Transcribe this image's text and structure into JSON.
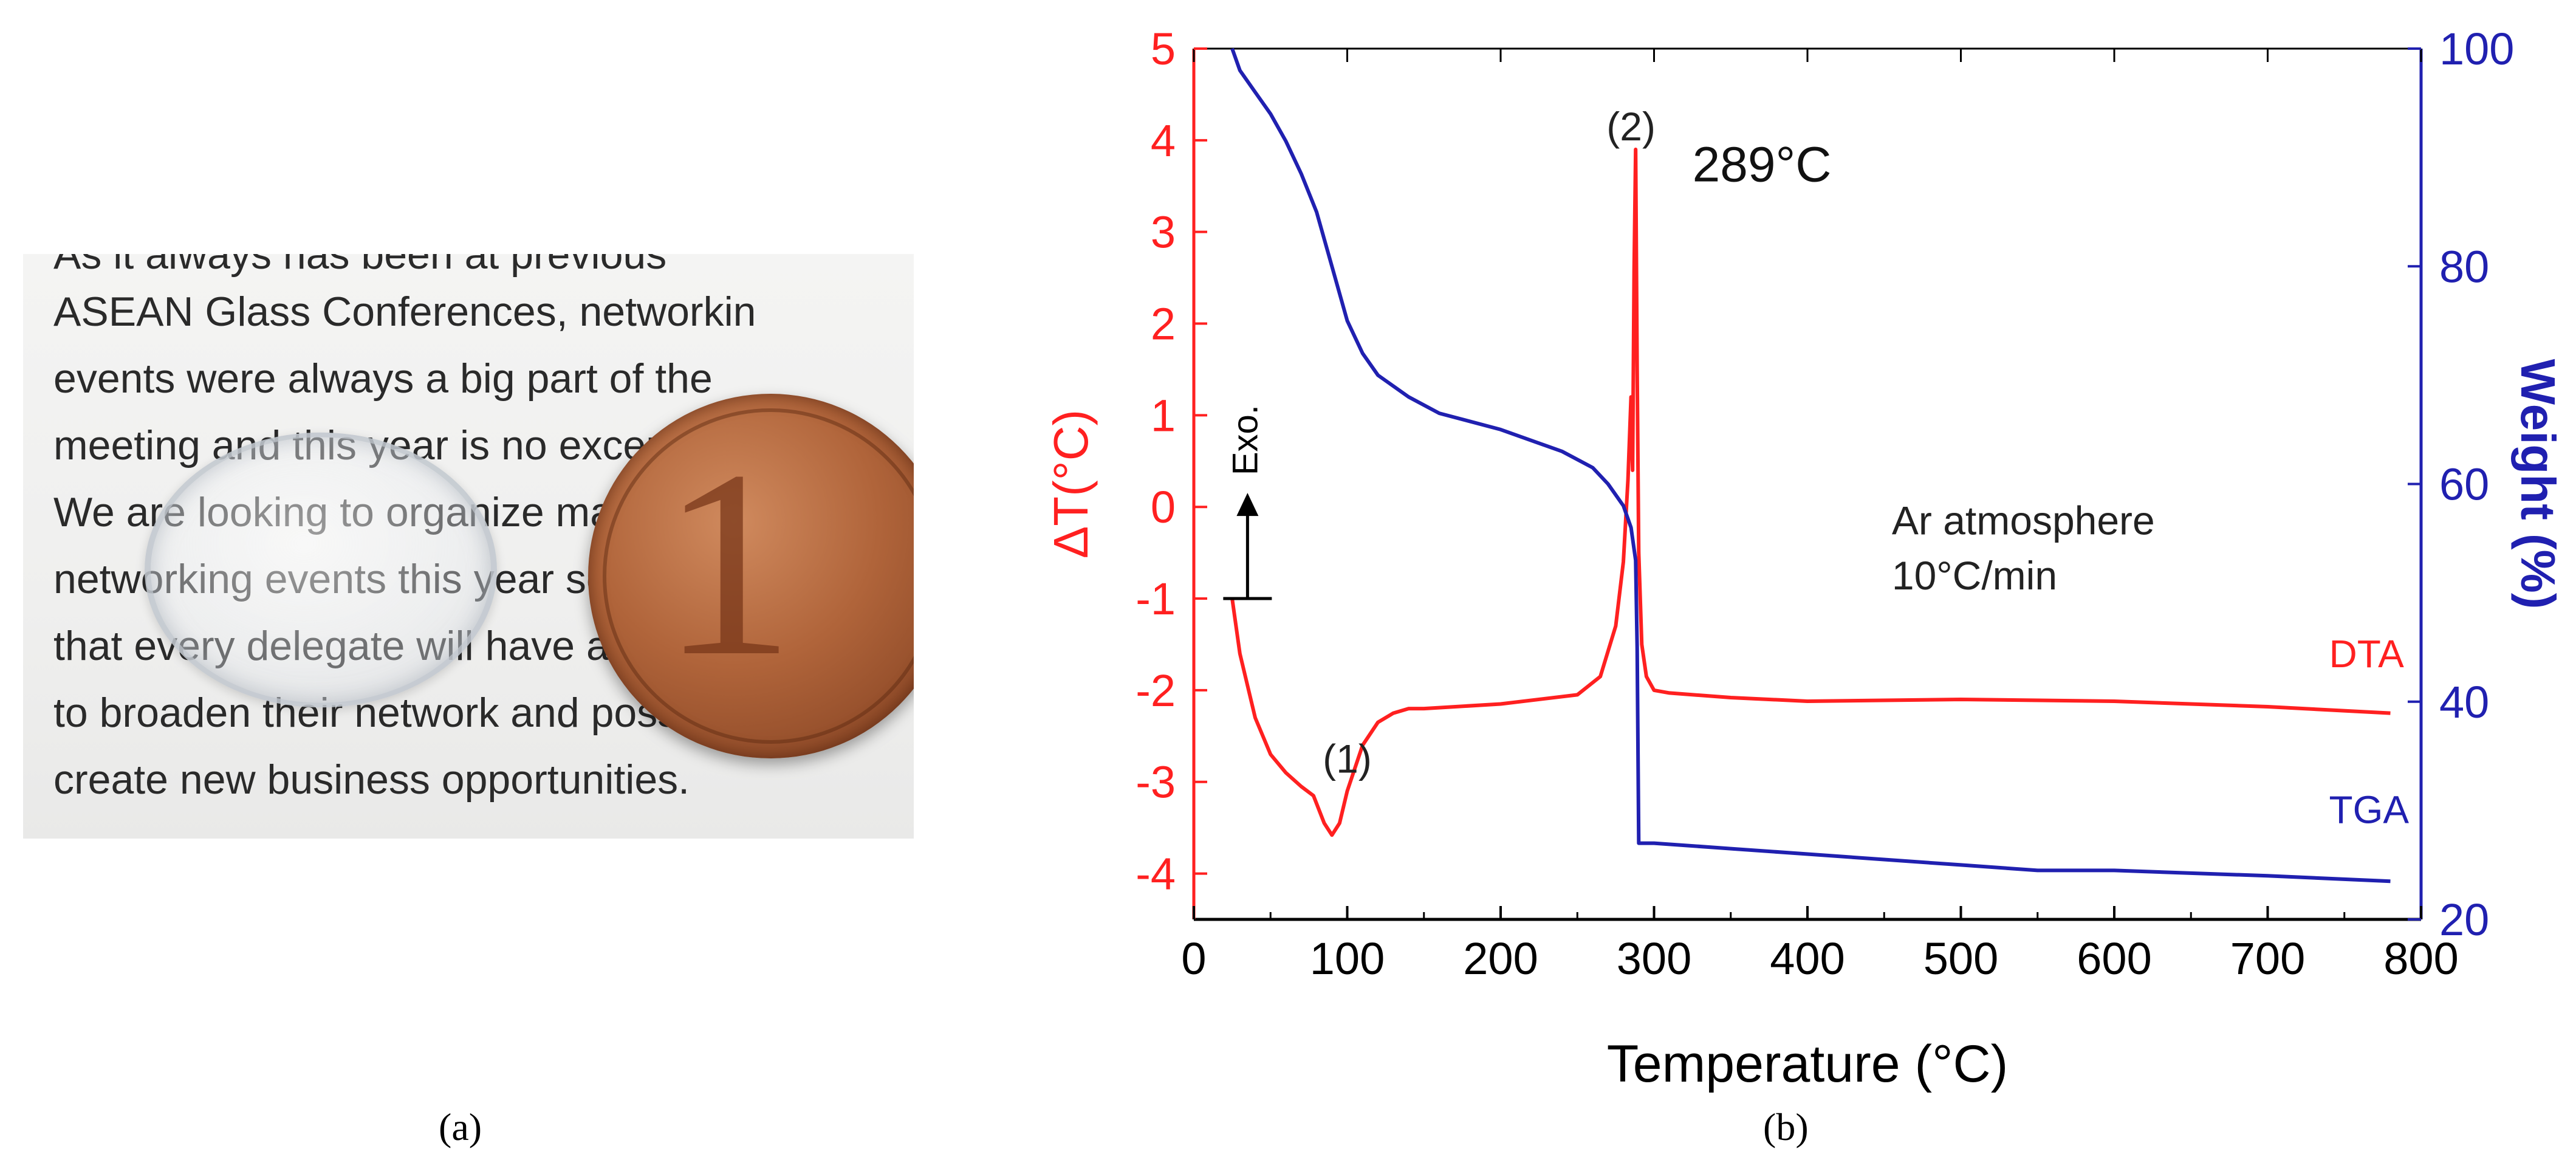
{
  "panel_a": {
    "caption": "(a)",
    "text_lines": [
      "As it always has been at previous",
      "ASEAN Glass Conferences, networkin",
      "events were always a big part of the",
      "meeting and this year is no exception.",
      "We are looking to organize many",
      "networking events this year so",
      "that every delegate will have a chance",
      "to broaden their network and possibly",
      "create new business opportunities."
    ]
  },
  "panel_b": {
    "caption": "(b)"
  },
  "chart_data": {
    "type": "line",
    "xlabel": "Temperature (°C)",
    "ylabel": "ΔT(°C)",
    "y2label": "Weight (%)",
    "xlim": [
      0,
      800
    ],
    "ylim": [
      -4.5,
      5
    ],
    "y2lim": [
      20,
      100
    ],
    "x_ticks": [
      "0",
      "100",
      "200",
      "300",
      "400",
      "500",
      "600",
      "700",
      "800"
    ],
    "y_ticks": [
      "-4",
      "-3",
      "-2",
      "-1",
      "0",
      "1",
      "2",
      "3",
      "4",
      "5"
    ],
    "y2_ticks": [
      "20",
      "40",
      "60",
      "80",
      "100"
    ],
    "colors": {
      "dta": "#ff2020",
      "tga": "#2020b0",
      "axis": "#000000",
      "left_axis": "#ff2020",
      "right_axis": "#2020b0"
    },
    "series": [
      {
        "name": "DTA",
        "axis": "left",
        "x": [
          25,
          30,
          40,
          50,
          60,
          70,
          78,
          85,
          90,
          95,
          100,
          110,
          120,
          130,
          140,
          150,
          200,
          250,
          265,
          275,
          280,
          283,
          285,
          286,
          287,
          288,
          289,
          290,
          292,
          295,
          300,
          310,
          350,
          400,
          500,
          600,
          700,
          780
        ],
        "y": [
          -1.0,
          -1.6,
          -2.3,
          -2.7,
          -2.9,
          -3.05,
          -3.15,
          -3.45,
          -3.58,
          -3.45,
          -3.1,
          -2.6,
          -2.35,
          -2.25,
          -2.2,
          -2.2,
          -2.15,
          -2.05,
          -1.85,
          -1.3,
          -0.6,
          0.3,
          1.2,
          0.4,
          2.6,
          3.9,
          1.5,
          -0.5,
          -1.5,
          -1.85,
          -2.0,
          -2.03,
          -2.08,
          -2.12,
          -2.1,
          -2.12,
          -2.18,
          -2.25
        ]
      },
      {
        "name": "TGA",
        "axis": "right",
        "x": [
          25,
          30,
          40,
          50,
          60,
          70,
          80,
          90,
          100,
          110,
          120,
          140,
          160,
          200,
          240,
          260,
          270,
          275,
          280,
          285,
          288,
          289,
          290,
          292,
          300,
          350,
          400,
          450,
          500,
          550,
          600,
          700,
          780
        ],
        "y": [
          100,
          98,
          96,
          94,
          91.5,
          88.5,
          85,
          80,
          75,
          72,
          70,
          68,
          66.5,
          65,
          63,
          61.5,
          60,
          59,
          58,
          56,
          53,
          45,
          27,
          27,
          27,
          26.5,
          26,
          25.5,
          25,
          24.5,
          24.5,
          24,
          23.5
        ]
      }
    ],
    "annotations": {
      "peak1_label": "(1)",
      "peak1_x": 100,
      "peak1_y": -2.9,
      "peak2_label": "(2)",
      "peak2_x": 285,
      "peak2_y": 4.0,
      "peak2_temp": "289°C",
      "peak2_temp_x": 325,
      "peak2_temp_y": 3.55,
      "atmosphere": "Ar atmosphere",
      "atmosphere_x": 455,
      "atmosphere_y": -0.3,
      "rate": "10°C/min",
      "rate_x": 455,
      "rate_y": -0.9,
      "exo": "Exo.",
      "exo_x": 35,
      "exo_from": -1.0,
      "exo_to": 0.1,
      "dta_label": "DTA",
      "dta_label_x": 740,
      "dta_label_y": -1.75,
      "tga_label": "TGA",
      "tga_label_x": 740,
      "tga_label_y": -3.45
    }
  }
}
